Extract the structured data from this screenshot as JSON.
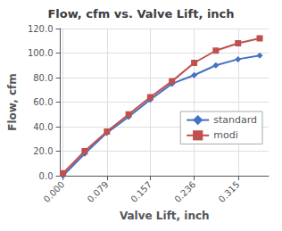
{
  "chart_data": {
    "type": "line",
    "title": "Flow, cfm vs. Valve Lift, inch",
    "xlabel": "Valve Lift, inch",
    "ylabel": "Flow, cfm",
    "series": [
      {
        "name": "standard",
        "color": "#4472C4",
        "marker": "diamond",
        "x": [
          0.0,
          0.039,
          0.079,
          0.118,
          0.157,
          0.196,
          0.236,
          0.275,
          0.315,
          0.354
        ],
        "values": [
          0.0,
          18.0,
          35.0,
          48.0,
          62.0,
          75.0,
          82.0,
          90.0,
          95.0,
          98.0
        ]
      },
      {
        "name": "modi",
        "color": "#C0504D",
        "marker": "square",
        "x": [
          0.0,
          0.039,
          0.079,
          0.118,
          0.157,
          0.196,
          0.236,
          0.275,
          0.315,
          0.354
        ],
        "values": [
          2.0,
          20.0,
          36.0,
          50.0,
          64.0,
          77.0,
          92.0,
          102.0,
          108.0,
          112.0
        ]
      }
    ],
    "xlim": [
      -0.005,
      0.37
    ],
    "xticks": [
      {
        "value": 0,
        "label": "0.000"
      },
      0.079,
      0.157,
      0.236,
      0.315
    ],
    "ylim": [
      0.0,
      120.0
    ],
    "yticks": [
      {
        "value": 0,
        "label": "0.0"
      },
      {
        "value": 20,
        "label": "20.0"
      },
      {
        "value": 40,
        "label": "40.0"
      },
      {
        "value": 60,
        "label": "60.0"
      },
      {
        "value": 80,
        "label": "80.0"
      },
      {
        "value": 100,
        "label": "100.0"
      },
      {
        "value": 120,
        "label": "120.0"
      }
    ],
    "grid": true,
    "legend": "right"
  }
}
